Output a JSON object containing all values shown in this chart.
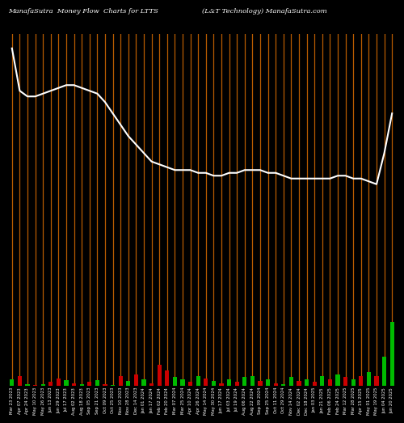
{
  "title_left": "ManafaSutra  Money Flow  Charts for LTTS",
  "title_right": "(L&T Technology) ManafaSutra.com",
  "bg_color": "#000000",
  "line_color": "#ffffff",
  "orange_line_color": "#b85c00",
  "bar_green": "#00bb00",
  "bar_red": "#cc0000",
  "n_bars": 50,
  "price_line": [
    95,
    80,
    78,
    78,
    79,
    80,
    81,
    82,
    82,
    81,
    80,
    79,
    76,
    72,
    68,
    64,
    61,
    58,
    55,
    54,
    53,
    52,
    52,
    52,
    51,
    51,
    50,
    50,
    51,
    51,
    52,
    52,
    52,
    51,
    51,
    50,
    49,
    49,
    49,
    49,
    49,
    49,
    50,
    50,
    49,
    49,
    48,
    47,
    58,
    72
  ],
  "bar_heights": [
    7,
    10,
    2,
    1,
    2,
    4,
    8,
    6,
    3,
    2,
    4,
    6,
    2,
    1,
    10,
    5,
    12,
    7,
    3,
    22,
    16,
    9,
    7,
    4,
    10,
    8,
    5,
    3,
    7,
    4,
    9,
    10,
    5,
    7,
    3,
    2,
    9,
    5,
    7,
    4,
    10,
    7,
    12,
    9,
    7,
    10,
    14,
    10,
    30,
    65
  ],
  "bar_colors": [
    "g",
    "r",
    "g",
    "r",
    "g",
    "r",
    "r",
    "g",
    "r",
    "g",
    "r",
    "g",
    "r",
    "g",
    "r",
    "g",
    "r",
    "g",
    "r",
    "r",
    "r",
    "g",
    "g",
    "r",
    "g",
    "r",
    "g",
    "r",
    "g",
    "r",
    "g",
    "g",
    "r",
    "g",
    "r",
    "g",
    "g",
    "r",
    "g",
    "r",
    "g",
    "r",
    "g",
    "r",
    "g",
    "r",
    "g",
    "r",
    "g",
    "g"
  ],
  "dates": [
    "Mar 23 2023",
    "Apr 07 2023",
    "Apr 24 2023",
    "May 10 2023",
    "May 26 2023",
    "Jun 13 2023",
    "Jun 29 2023",
    "Jul 17 2023",
    "Aug 02 2023",
    "Aug 18 2023",
    "Sep 05 2023",
    "Sep 21 2023",
    "Oct 09 2023",
    "Oct 25 2023",
    "Nov 10 2023",
    "Nov 28 2023",
    "Dec 14 2023",
    "Jan 01 2024",
    "Jan 17 2024",
    "Feb 02 2024",
    "Feb 20 2024",
    "Mar 07 2024",
    "Mar 25 2024",
    "Apr 10 2024",
    "Apr 26 2024",
    "May 14 2024",
    "May 30 2024",
    "Jun 17 2024",
    "Jul 03 2024",
    "Jul 19 2024",
    "Aug 06 2024",
    "Aug 22 2024",
    "Sep 09 2024",
    "Sep 25 2024",
    "Oct 11 2024",
    "Oct 29 2024",
    "Nov 14 2024",
    "Dec 02 2024",
    "Dec 18 2024",
    "Jan 03 2025",
    "Jan 21 2025",
    "Feb 06 2025",
    "Feb 24 2025",
    "Mar 12 2025",
    "Mar 28 2025",
    "Apr 15 2025",
    "May 01 2025",
    "May 19 2025",
    "Jun 04 2025",
    "Jun 20 2025"
  ]
}
